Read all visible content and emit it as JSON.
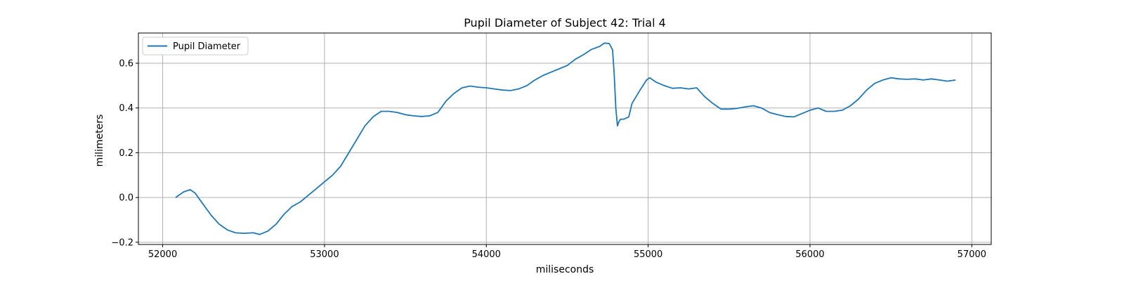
{
  "chart_data": {
    "type": "line",
    "title": "Pupil Diameter of Subject 42: Trial 4",
    "xlabel": "miliseconds",
    "ylabel": "milimeters",
    "xlim": [
      51850,
      57120
    ],
    "ylim": [
      -0.21,
      0.735
    ],
    "xticks": [
      52000,
      53000,
      54000,
      55000,
      56000,
      57000
    ],
    "yticks": [
      -0.2,
      0.0,
      0.2,
      0.4,
      0.6
    ],
    "ytick_labels": [
      "−0.2",
      "0.0",
      "0.2",
      "0.4",
      "0.6"
    ],
    "grid": true,
    "legend_position": "upper-left",
    "series": [
      {
        "name": "Pupil Diameter",
        "color": "#1f77b4",
        "x": [
          52080,
          52130,
          52170,
          52200,
          52250,
          52300,
          52350,
          52400,
          52450,
          52500,
          52560,
          52600,
          52650,
          52700,
          52750,
          52800,
          52850,
          52900,
          52950,
          53000,
          53050,
          53100,
          53150,
          53200,
          53250,
          53300,
          53350,
          53400,
          53450,
          53500,
          53550,
          53600,
          53650,
          53700,
          53750,
          53800,
          53850,
          53900,
          53950,
          54000,
          54050,
          54100,
          54150,
          54200,
          54250,
          54300,
          54350,
          54400,
          54450,
          54500,
          54550,
          54600,
          54650,
          54700,
          54730,
          54760,
          54780,
          54790,
          54800,
          54810,
          54820,
          54830,
          54850,
          54880,
          54900,
          54950,
          54990,
          55010,
          55050,
          55100,
          55150,
          55200,
          55250,
          55300,
          55350,
          55400,
          55450,
          55500,
          55550,
          55600,
          55650,
          55700,
          55750,
          55800,
          55850,
          55900,
          55950,
          56000,
          56050,
          56100,
          56150,
          56200,
          56250,
          56300,
          56350,
          56400,
          56450,
          56500,
          56550,
          56600,
          56650,
          56700,
          56750,
          56800,
          56850,
          56900
        ],
        "values": [
          0.0,
          0.025,
          0.035,
          0.02,
          -0.03,
          -0.08,
          -0.12,
          -0.145,
          -0.158,
          -0.16,
          -0.158,
          -0.165,
          -0.15,
          -0.12,
          -0.075,
          -0.04,
          -0.02,
          0.01,
          0.04,
          0.07,
          0.1,
          0.14,
          0.2,
          0.26,
          0.32,
          0.36,
          0.385,
          0.385,
          0.38,
          0.37,
          0.365,
          0.362,
          0.365,
          0.38,
          0.43,
          0.465,
          0.49,
          0.498,
          0.493,
          0.49,
          0.485,
          0.48,
          0.478,
          0.485,
          0.5,
          0.525,
          0.545,
          0.56,
          0.575,
          0.59,
          0.618,
          0.638,
          0.662,
          0.675,
          0.69,
          0.688,
          0.66,
          0.55,
          0.4,
          0.32,
          0.34,
          0.35,
          0.35,
          0.36,
          0.42,
          0.48,
          0.525,
          0.535,
          0.515,
          0.5,
          0.488,
          0.49,
          0.485,
          0.49,
          0.45,
          0.42,
          0.395,
          0.395,
          0.398,
          0.405,
          0.41,
          0.4,
          0.38,
          0.37,
          0.362,
          0.36,
          0.375,
          0.39,
          0.4,
          0.385,
          0.385,
          0.39,
          0.41,
          0.44,
          0.48,
          0.51,
          0.525,
          0.535,
          0.53,
          0.528,
          0.53,
          0.525,
          0.53,
          0.525,
          0.52,
          0.525
        ]
      }
    ]
  }
}
